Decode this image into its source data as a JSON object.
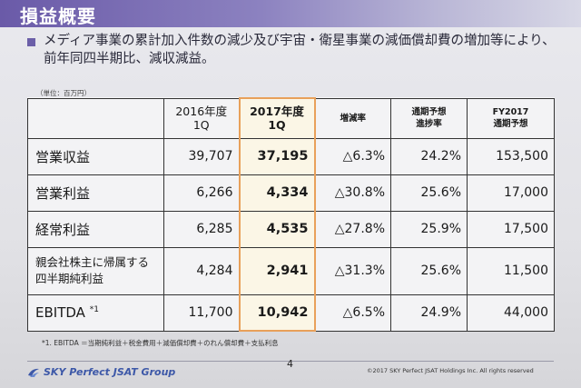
{
  "header": {
    "title": "損益概要"
  },
  "summary": {
    "line1": "メディア事業の累計加入件数の減少及び宇宙・衛星事業の減価償却費の増加等により、",
    "line2": "前年同四半期比、減収減益。"
  },
  "table": {
    "unit": "（単位：百万円）",
    "headers": [
      {
        "line1": "2016年度",
        "line2": "1Q"
      },
      {
        "line1": "2017年度",
        "line2": "1Q"
      },
      {
        "line1": "増減率",
        "line2": ""
      },
      {
        "line1": "通期予想",
        "line2": "進捗率"
      },
      {
        "line1": "FY2017",
        "line2": "通期予想"
      }
    ],
    "rows": [
      {
        "label": "営業収益",
        "label2": "",
        "sup": "",
        "values": [
          "39,707",
          "37,195",
          "△6.3%",
          "24.2%",
          "153,500"
        ]
      },
      {
        "label": "営業利益",
        "label2": "",
        "sup": "",
        "values": [
          "6,266",
          "4,334",
          "△30.8%",
          "25.6%",
          "17,000"
        ]
      },
      {
        "label": "経常利益",
        "label2": "",
        "sup": "",
        "values": [
          "6,285",
          "4,535",
          "△27.8%",
          "25.9%",
          "17,500"
        ]
      },
      {
        "label": "親会社株主に帰属する",
        "label2": "四半期純利益",
        "sup": "",
        "values": [
          "4,284",
          "2,941",
          "△31.3%",
          "25.6%",
          "11,500"
        ]
      },
      {
        "label": "EBITDA",
        "label2": "",
        "sup": "*1",
        "values": [
          "11,700",
          "10,942",
          "△6.5%",
          "24.9%",
          "44,000"
        ]
      }
    ]
  },
  "footnote": "*1. EBITDA ＝当期純利益＋税金費用＋減価償却費＋のれん償却費＋支払利息",
  "footer": {
    "page": "4",
    "logo": "SKY Perfect JSAT Group",
    "copyright": "©2017 SKY Perfect JSAT Holdings Inc. All rights reserved",
    "accent": "#3d58a8"
  }
}
